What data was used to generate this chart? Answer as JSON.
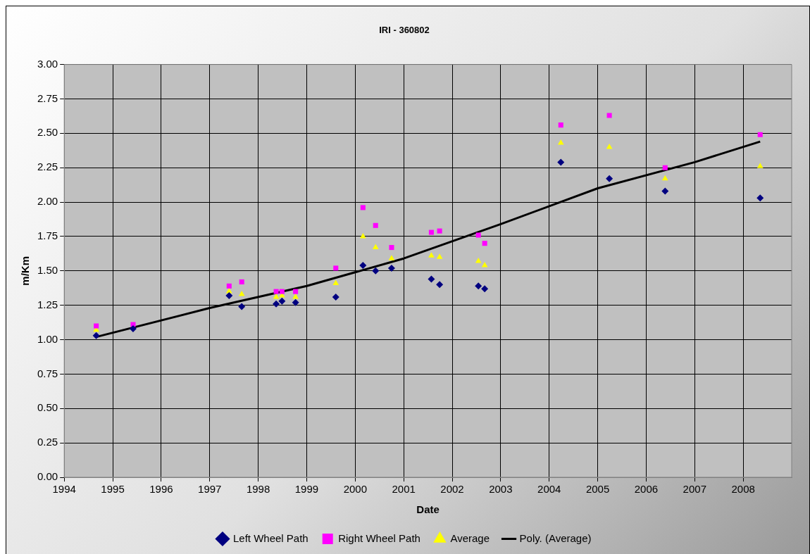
{
  "chart_data": {
    "type": "scatter",
    "title": "IRI - 360802",
    "xlabel": "Date",
    "ylabel": "m/Km",
    "xlim": [
      1994,
      2009
    ],
    "xticks": [
      1994,
      1995,
      1996,
      1997,
      1998,
      1999,
      2000,
      2001,
      2002,
      2003,
      2004,
      2005,
      2006,
      2007,
      2008
    ],
    "ylim": [
      0,
      3
    ],
    "yticks": [
      {
        "value": 0,
        "label": "0.00"
      },
      {
        "value": 0.25,
        "label": "0.25"
      },
      {
        "value": 0.5,
        "label": "0.50"
      },
      {
        "value": 0.75,
        "label": "0.75"
      },
      {
        "value": 1,
        "label": "1.00"
      },
      {
        "value": 1.25,
        "label": "1.25"
      },
      {
        "value": 1.5,
        "label": "1.50"
      },
      {
        "value": 1.75,
        "label": "1.75"
      },
      {
        "value": 2,
        "label": "2.00"
      },
      {
        "value": 2.25,
        "label": "2.25"
      },
      {
        "value": 2.5,
        "label": "2.50"
      },
      {
        "value": 2.75,
        "label": "2.75"
      },
      {
        "value": 3,
        "label": "3.00"
      }
    ],
    "grid": true,
    "legend": "bottom",
    "x": [
      1994.66,
      1995.42,
      1997.4,
      1997.66,
      1998.37,
      1998.49,
      1998.77,
      1999.6,
      2000.16,
      2000.42,
      2000.75,
      2001.57,
      2001.74,
      2002.54,
      2002.67,
      2004.24,
      2005.24,
      2006.39,
      2008.35
    ],
    "series": [
      {
        "name": "Left Wheel Path",
        "color": "#000080",
        "marker": "diamond",
        "values": [
          1.03,
          1.08,
          1.32,
          1.24,
          1.26,
          1.28,
          1.27,
          1.31,
          1.54,
          1.5,
          1.52,
          1.44,
          1.4,
          1.39,
          1.37,
          2.29,
          2.17,
          2.08,
          2.03
        ]
      },
      {
        "name": "Right Wheel Path",
        "color": "#ff00ff",
        "marker": "square",
        "values": [
          1.1,
          1.11,
          1.39,
          1.42,
          1.35,
          1.35,
          1.35,
          1.52,
          1.96,
          1.83,
          1.67,
          1.78,
          1.79,
          1.76,
          1.7,
          2.56,
          2.63,
          2.25,
          2.49
        ]
      },
      {
        "name": "Average",
        "color": "#ffff00",
        "marker": "triangle",
        "values": [
          1.07,
          null,
          1.35,
          1.33,
          1.31,
          1.32,
          1.31,
          1.41,
          1.75,
          1.67,
          1.59,
          1.61,
          1.6,
          1.57,
          1.54,
          2.43,
          2.4,
          2.17,
          2.26
        ]
      },
      {
        "name": "Poly. (Average)",
        "type": "line",
        "color": "#000000",
        "marker": "none",
        "line_style": "solid",
        "x": [
          1994.66,
          1997,
          1999,
          2001,
          2003,
          2005,
          2007,
          2008.35
        ],
        "values": [
          1.02,
          1.23,
          1.39,
          1.59,
          1.84,
          2.1,
          2.29,
          2.44
        ]
      }
    ]
  }
}
